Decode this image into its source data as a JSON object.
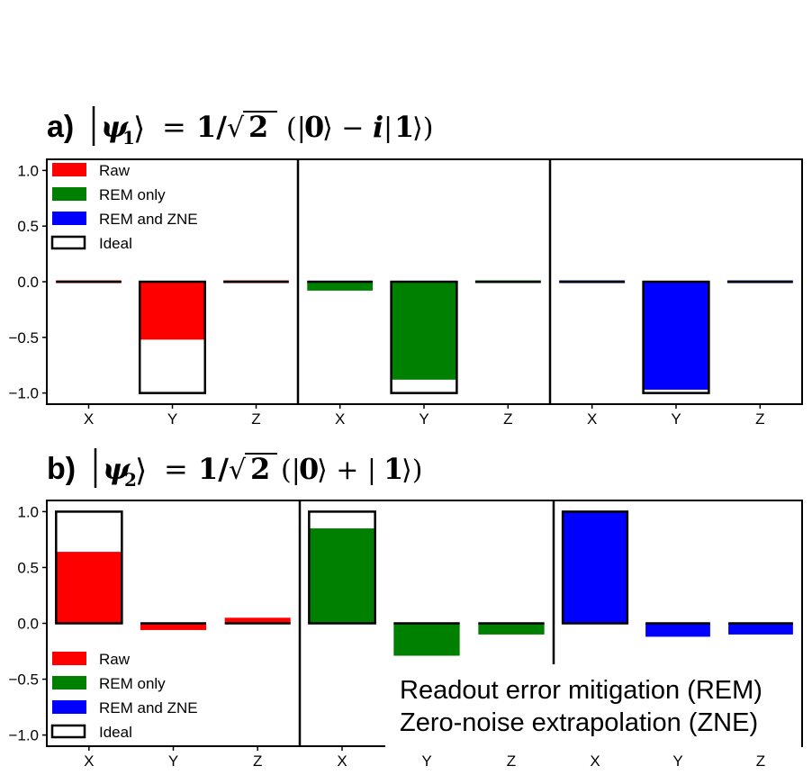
{
  "figure": {
    "note_line1": "Readout error mitigation (REM)",
    "note_line2": "Zero-noise extrapolation (ZNE)"
  },
  "colors": {
    "raw": "#ff0000",
    "rem_only": "#008000",
    "rem_zne": "#0000ff",
    "ideal_edge": "#000000"
  },
  "legend": [
    {
      "key": "raw",
      "label": "Raw"
    },
    {
      "key": "rem_only",
      "label": "REM only"
    },
    {
      "key": "rem_zne",
      "label": "REM and ZNE"
    },
    {
      "key": "ideal",
      "label": "Ideal"
    }
  ],
  "chart_data": [
    {
      "type": "bar",
      "panel": "a)",
      "title_tex": "|ψ1⟩ = 1/√2 (|0⟩ − i|1⟩)",
      "categories": [
        "X",
        "Y",
        "Z"
      ],
      "ylim": [
        -1.1,
        1.1
      ],
      "yticks": [
        "1.0",
        "0.5",
        "0.0",
        "−0.5",
        "−1.0"
      ],
      "ytick_values": [
        1.0,
        0.5,
        0.0,
        -0.5,
        -1.0
      ],
      "ideal": [
        0.0,
        -1.0,
        0.0
      ],
      "legend_position": "top-left",
      "series": [
        {
          "name": "Raw",
          "key": "raw",
          "values": [
            -0.01,
            -0.52,
            0.02
          ]
        },
        {
          "name": "REM only",
          "key": "rem_only",
          "values": [
            -0.08,
            -0.88,
            0.0
          ]
        },
        {
          "name": "REM and ZNE",
          "key": "rem_zne",
          "values": [
            0.0,
            -0.97,
            0.0
          ]
        }
      ]
    },
    {
      "type": "bar",
      "panel": "b)",
      "title_tex": "|ψ2⟩ = 1/√2(|0⟩ + |1⟩)",
      "categories": [
        "X",
        "Y",
        "Z"
      ],
      "ylim": [
        -1.1,
        1.1
      ],
      "yticks": [
        "1.0",
        "0.5",
        "0.0",
        "−0.5",
        "−1.0"
      ],
      "ytick_values": [
        1.0,
        0.5,
        0.0,
        -0.5,
        -1.0
      ],
      "ideal": [
        1.0,
        0.0,
        0.0
      ],
      "legend_position": "bottom-left",
      "series": [
        {
          "name": "Raw",
          "key": "raw",
          "values": [
            0.64,
            -0.06,
            0.05
          ]
        },
        {
          "name": "REM only",
          "key": "rem_only",
          "values": [
            0.85,
            -0.29,
            -0.1
          ]
        },
        {
          "name": "REM and ZNE",
          "key": "rem_zne",
          "values": [
            1.0,
            -0.12,
            -0.1
          ]
        }
      ]
    }
  ]
}
